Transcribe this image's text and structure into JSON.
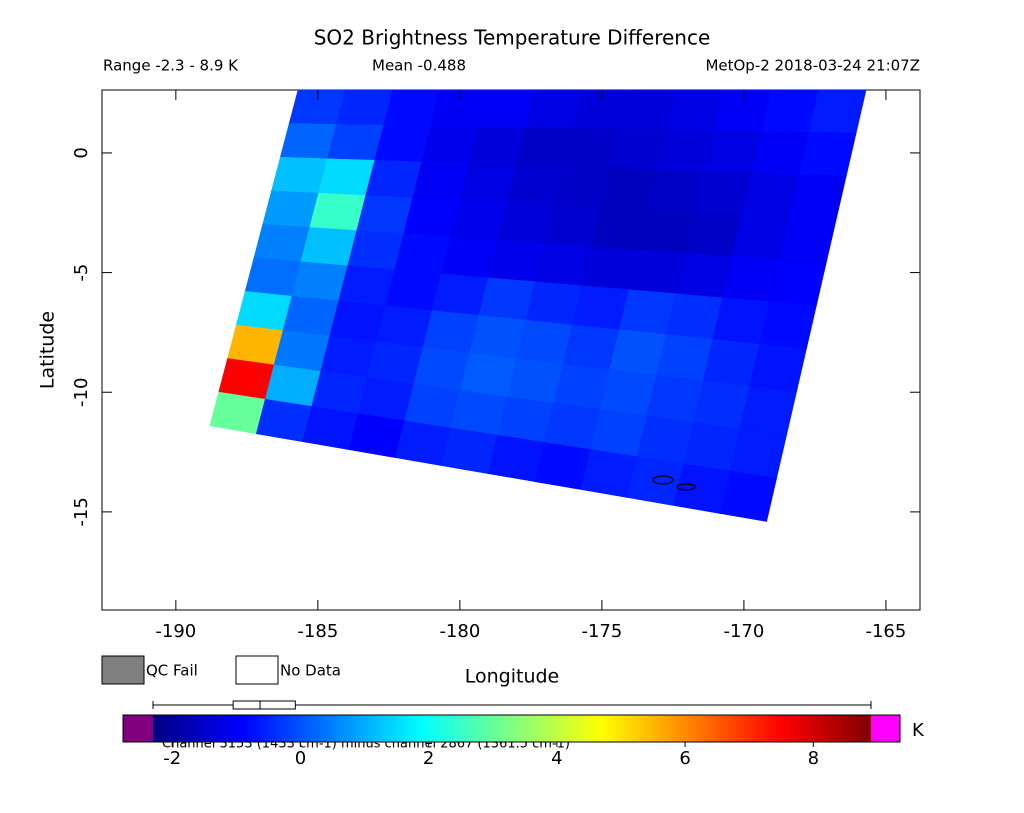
{
  "chart_data": {
    "type": "swath",
    "title": "SO2 Brightness Temperature Difference",
    "range_text": "Range -2.3 - 8.9 K",
    "mean_text": "Mean -0.488",
    "source_text": "MetOp-2 2018-03-24 21:07Z",
    "xlabel": "Longitude",
    "ylabel": "Latitude",
    "xlim": [
      -192.6,
      -163.8
    ],
    "ylim": [
      -19.1,
      2.63
    ],
    "xticks": [
      -190,
      -185,
      -180,
      -175,
      -170,
      -165
    ],
    "yticks": [
      0,
      -5,
      -10,
      -15
    ],
    "swath_corners": {
      "lon": [
        -185.7,
        -165.7,
        -169.2,
        -188.8
      ],
      "lat": [
        2.63,
        2.63,
        -15.4,
        -11.4
      ]
    },
    "values": [
      [
        -0.3,
        -0.5,
        -0.8,
        -1,
        -1,
        -1.2,
        -1.3,
        -1.3,
        -1.2,
        -1,
        -0.8,
        -0.6
      ],
      [
        0.2,
        -0.2,
        -0.8,
        -1.1,
        -1.3,
        -1.5,
        -1.5,
        -1.4,
        -1.3,
        -1.2,
        -1,
        -0.8
      ],
      [
        1.2,
        1.5,
        -0.5,
        -1,
        -1.2,
        -1.4,
        -1.5,
        -1.6,
        -1.5,
        -1.4,
        -1.2,
        -1
      ],
      [
        0.8,
        2.5,
        -0.3,
        -0.9,
        -1.1,
        -1.3,
        -1.4,
        -1.6,
        -1.6,
        -1.5,
        -1.2,
        -1
      ],
      [
        0.5,
        1.2,
        -0.4,
        -0.8,
        -1,
        -1.1,
        -1.2,
        -1.3,
        -1.3,
        -1.2,
        -1,
        -0.9
      ],
      [
        0.3,
        0.5,
        -0.6,
        -0.8,
        -0.6,
        -0.3,
        -0.5,
        -0.6,
        -0.3,
        -0.4,
        -0.7,
        -0.8
      ],
      [
        1.5,
        0.2,
        -0.7,
        -0.6,
        -0.2,
        0,
        -0.1,
        -0.3,
        0,
        -0.2,
        -0.5,
        -0.7
      ],
      [
        5.5,
        0.4,
        -0.6,
        -0.5,
        -0.1,
        0.1,
        0,
        -0.2,
        -0.1,
        -0.3,
        -0.4,
        -0.6
      ],
      [
        7.5,
        1,
        -0.5,
        -0.6,
        -0.2,
        -0.1,
        -0.2,
        -0.3,
        -0.2,
        -0.4,
        -0.5,
        -0.6
      ],
      [
        3,
        -0.4,
        -0.7,
        -0.9,
        -0.6,
        -0.5,
        -0.7,
        -0.8,
        -0.6,
        -0.5,
        -0.7,
        -0.8
      ]
    ],
    "clim": [
      -2.3,
      8.9
    ],
    "cticks": [
      -2,
      0,
      2,
      4,
      6,
      8
    ],
    "colormap": [
      "#000080",
      "#0000ff",
      "#0080ff",
      "#00ffff",
      "#80ff80",
      "#ffff00",
      "#ff8000",
      "#ff0000",
      "#800000"
    ],
    "under_color": "#800080",
    "over_color": "#ff00ff",
    "unit": "K",
    "boxplot": {
      "min": -2.3,
      "q1": -1.05,
      "median": -0.63,
      "q3": -0.08,
      "max": 8.9
    },
    "legend": [
      {
        "name": "QC Fail",
        "color": "#808080"
      },
      {
        "name": "No Data",
        "color": "#ffffff"
      }
    ],
    "footnote": "Channel 3153 (1433 cm-1) minus channel 2867 (1361.5 cm-1)"
  }
}
